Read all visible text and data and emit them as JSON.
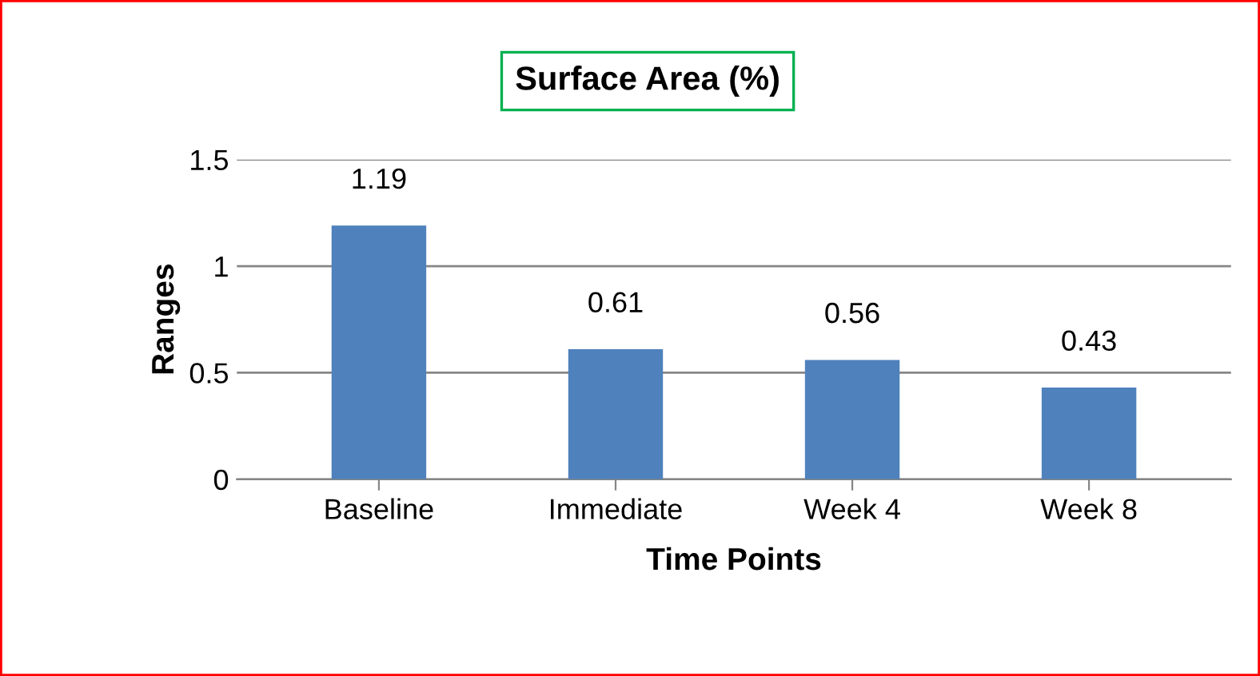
{
  "chart_data": {
    "type": "bar",
    "title": "Surface Area (%)",
    "xlabel": "Time Points",
    "ylabel": "Ranges",
    "categories": [
      "Baseline",
      "Immediate",
      "Week 4",
      "Week 8"
    ],
    "values": [
      1.19,
      0.61,
      0.56,
      0.43
    ],
    "color": "#4f81bd",
    "ylim": [
      0,
      1.5
    ],
    "yticks": [
      0,
      0.5,
      1,
      1.5
    ],
    "grid": "y",
    "data_labels": true,
    "legend": false
  }
}
